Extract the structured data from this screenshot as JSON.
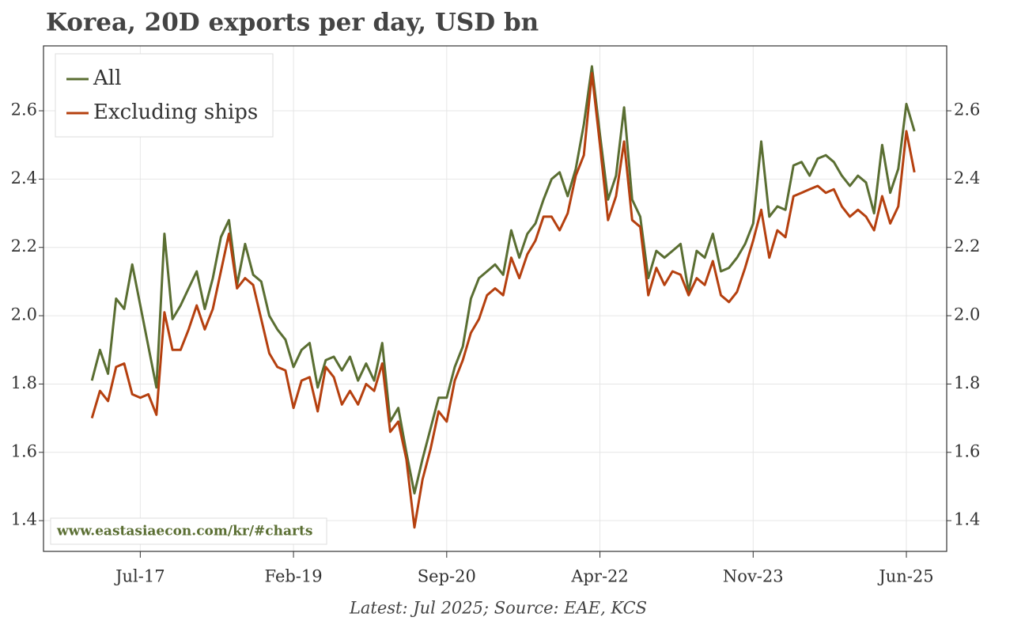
{
  "chart_data": {
    "type": "line",
    "title": "Korea, 20D exports per day, USD bn",
    "source": "Latest: Jul 2025; Source: EAE, KCS",
    "watermark": "www.eastasiaecon.com/kr/#charts",
    "x": [
      "2017-01",
      "2017-02",
      "2017-03",
      "2017-04",
      "2017-05",
      "2017-06",
      "2017-07",
      "2017-08",
      "2017-09",
      "2017-10",
      "2017-11",
      "2017-12",
      "2018-01",
      "2018-02",
      "2018-03",
      "2018-04",
      "2018-05",
      "2018-06",
      "2018-07",
      "2018-08",
      "2018-09",
      "2018-10",
      "2018-11",
      "2018-12",
      "2019-01",
      "2019-02",
      "2019-03",
      "2019-04",
      "2019-05",
      "2019-06",
      "2019-07",
      "2019-08",
      "2019-09",
      "2019-10",
      "2019-11",
      "2019-12",
      "2020-01",
      "2020-02",
      "2020-03",
      "2020-04",
      "2020-05",
      "2020-06",
      "2020-07",
      "2020-08",
      "2020-09",
      "2020-10",
      "2020-11",
      "2020-12",
      "2021-01",
      "2021-02",
      "2021-03",
      "2021-04",
      "2021-05",
      "2021-06",
      "2021-07",
      "2021-08",
      "2021-09",
      "2021-10",
      "2021-11",
      "2021-12",
      "2022-01",
      "2022-02",
      "2022-03",
      "2022-04",
      "2022-05",
      "2022-06",
      "2022-07",
      "2022-08",
      "2022-09",
      "2022-10",
      "2022-11",
      "2022-12",
      "2023-01",
      "2023-02",
      "2023-03",
      "2023-04",
      "2023-05",
      "2023-06",
      "2023-07",
      "2023-08",
      "2023-09",
      "2023-10",
      "2023-11",
      "2023-12",
      "2024-01",
      "2024-02",
      "2024-03",
      "2024-04",
      "2024-05",
      "2024-06",
      "2024-07",
      "2024-08",
      "2024-09",
      "2024-10",
      "2024-11",
      "2024-12",
      "2025-01",
      "2025-02",
      "2025-03",
      "2025-04",
      "2025-05",
      "2025-06",
      "2025-07"
    ],
    "series": [
      {
        "name": "All",
        "color": "#5a6e32",
        "values": [
          1.81,
          1.9,
          1.83,
          2.05,
          2.02,
          2.15,
          2.03,
          1.91,
          1.79,
          2.24,
          1.99,
          2.03,
          2.08,
          2.13,
          2.02,
          2.11,
          2.23,
          2.28,
          2.09,
          2.21,
          2.12,
          2.1,
          2.0,
          1.96,
          1.93,
          1.85,
          1.9,
          1.92,
          1.79,
          1.87,
          1.88,
          1.84,
          1.88,
          1.81,
          1.86,
          1.81,
          1.92,
          1.69,
          1.73,
          1.6,
          1.48,
          1.58,
          1.67,
          1.76,
          1.76,
          1.85,
          1.91,
          2.05,
          2.11,
          2.13,
          2.15,
          2.12,
          2.25,
          2.17,
          2.24,
          2.27,
          2.34,
          2.4,
          2.42,
          2.35,
          2.43,
          2.56,
          2.73,
          2.53,
          2.34,
          2.41,
          2.61,
          2.34,
          2.29,
          2.11,
          2.19,
          2.17,
          2.19,
          2.21,
          2.07,
          2.19,
          2.17,
          2.24,
          2.13,
          2.14,
          2.17,
          2.21,
          2.27,
          2.51,
          2.29,
          2.32,
          2.31,
          2.44,
          2.45,
          2.41,
          2.46,
          2.47,
          2.45,
          2.41,
          2.38,
          2.41,
          2.39,
          2.3,
          2.5,
          2.36,
          2.43,
          2.62,
          2.54
        ]
      },
      {
        "name": "Excluding ships",
        "color": "#b5400f",
        "values": [
          1.7,
          1.78,
          1.75,
          1.85,
          1.86,
          1.77,
          1.76,
          1.77,
          1.71,
          2.01,
          1.9,
          1.9,
          1.96,
          2.03,
          1.96,
          2.02,
          2.13,
          2.24,
          2.08,
          2.11,
          2.09,
          1.99,
          1.89,
          1.85,
          1.84,
          1.73,
          1.81,
          1.82,
          1.72,
          1.85,
          1.82,
          1.74,
          1.78,
          1.74,
          1.8,
          1.78,
          1.86,
          1.66,
          1.69,
          1.58,
          1.38,
          1.52,
          1.61,
          1.72,
          1.69,
          1.81,
          1.87,
          1.95,
          1.99,
          2.06,
          2.08,
          2.06,
          2.17,
          2.11,
          2.18,
          2.22,
          2.29,
          2.29,
          2.25,
          2.3,
          2.41,
          2.47,
          2.71,
          2.5,
          2.28,
          2.35,
          2.51,
          2.28,
          2.26,
          2.06,
          2.14,
          2.09,
          2.13,
          2.12,
          2.06,
          2.11,
          2.09,
          2.16,
          2.06,
          2.04,
          2.07,
          2.14,
          2.22,
          2.31,
          2.17,
          2.25,
          2.23,
          2.35,
          2.36,
          2.37,
          2.38,
          2.36,
          2.37,
          2.32,
          2.29,
          2.31,
          2.29,
          2.25,
          2.35,
          2.27,
          2.32,
          2.54,
          2.42
        ]
      }
    ],
    "xlim": [
      "2016-07",
      "2025-11"
    ],
    "xticks": [
      {
        "value": "2017-07",
        "label": "Jul-17"
      },
      {
        "value": "2019-02",
        "label": "Feb-19"
      },
      {
        "value": "2020-09",
        "label": "Sep-20"
      },
      {
        "value": "2022-04",
        "label": "Apr-22"
      },
      {
        "value": "2023-11",
        "label": "Nov-23"
      },
      {
        "value": "2025-06",
        "label": "Jun-25"
      }
    ],
    "ylim": [
      1.31,
      2.79
    ],
    "yticks": [
      {
        "value": 1.4,
        "label": "1.4"
      },
      {
        "value": 1.6,
        "label": "1.6"
      },
      {
        "value": 1.8,
        "label": "1.8"
      },
      {
        "value": 2.0,
        "label": "2.0"
      },
      {
        "value": 2.2,
        "label": "2.2"
      },
      {
        "value": 2.4,
        "label": "2.4"
      },
      {
        "value": 2.6,
        "label": "2.6"
      }
    ],
    "y2lim": [
      1.31,
      2.79
    ],
    "y2ticks": [
      {
        "value": 1.4,
        "label": "1.4"
      },
      {
        "value": 1.6,
        "label": "1.6"
      },
      {
        "value": 1.8,
        "label": "1.8"
      },
      {
        "value": 2.0,
        "label": "2.0"
      },
      {
        "value": 2.2,
        "label": "2.2"
      },
      {
        "value": 2.4,
        "label": "2.4"
      },
      {
        "value": 2.6,
        "label": "2.6"
      }
    ],
    "grid": true,
    "legend": "upper left"
  }
}
